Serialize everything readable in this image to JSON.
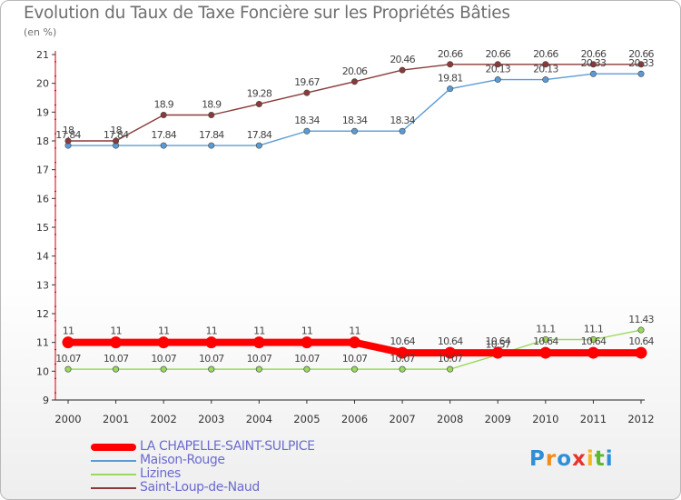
{
  "title": "Evolution du Taux de Taxe Foncière sur les Propriétés Bâties",
  "unit_label": "(en %)",
  "logo_text": "Proxiti",
  "chart_data": {
    "type": "line",
    "x": [
      2000,
      2001,
      2002,
      2003,
      2004,
      2005,
      2006,
      2007,
      2008,
      2009,
      2010,
      2011,
      2012
    ],
    "ylim": [
      9,
      21
    ],
    "yticks": [
      9,
      10,
      11,
      12,
      13,
      14,
      15,
      16,
      17,
      18,
      19,
      20,
      21
    ],
    "grid": false,
    "legend_position": "bottom-left",
    "series": [
      {
        "name": "LA CHAPELLE-SAINT-SULPICE",
        "color": "#ff0000",
        "values": [
          11,
          11,
          11,
          11,
          11,
          11,
          11,
          10.64,
          10.64,
          10.64,
          10.64,
          10.64,
          10.64
        ],
        "labels": [
          "11",
          "11",
          "11",
          "11",
          "11",
          "11",
          "11",
          "10.64",
          "10.64",
          "10.64",
          "10.64",
          "10.64",
          "10.64"
        ]
      },
      {
        "name": "Maison-Rouge",
        "color": "#5b9bd5",
        "values": [
          17.84,
          17.84,
          17.84,
          17.84,
          17.84,
          18.34,
          18.34,
          18.34,
          19.81,
          20.13,
          20.13,
          20.33,
          20.33
        ],
        "labels": [
          "17.84",
          "17.84",
          "17.84",
          "17.84",
          "17.84",
          "18.34",
          "18.34",
          "18.34",
          "19.81",
          "20.13",
          "20.13",
          "20.33",
          "20.33"
        ]
      },
      {
        "name": "Lizines",
        "color": "#99d95b",
        "values": [
          10.07,
          10.07,
          10.07,
          10.07,
          10.07,
          10.07,
          10.07,
          10.07,
          10.07,
          10.57,
          11.1,
          11.1,
          11.43
        ],
        "labels": [
          "10.07",
          "10.07",
          "10.07",
          "10.07",
          "10.07",
          "10.07",
          "10.07",
          "10.07",
          "10.07",
          "10.57",
          "11.1",
          "11.1",
          "11.43"
        ]
      },
      {
        "name": "Saint-Loup-de-Naud",
        "color": "#8b3a3a",
        "values": [
          18,
          18,
          18.9,
          18.9,
          19.28,
          19.67,
          20.06,
          20.46,
          20.66,
          20.66,
          20.66,
          20.66,
          20.66
        ],
        "labels": [
          "18",
          "18",
          "18.9",
          "18.9",
          "19.28",
          "19.67",
          "20.06",
          "20.46",
          "20.66",
          "20.66",
          "20.66",
          "20.66",
          "20.66"
        ]
      }
    ]
  }
}
